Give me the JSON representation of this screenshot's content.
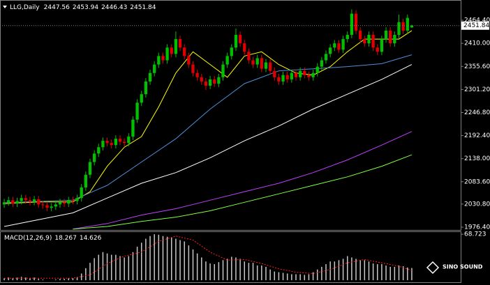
{
  "chart_data": [
    {
      "type": "candlestick",
      "title": "LLG,Daily",
      "open": [
        2030,
        2035,
        2040,
        2032,
        2038,
        2045,
        2040,
        2036,
        2042,
        2030,
        2028,
        2022,
        2025,
        2030,
        2035,
        2032,
        2040,
        2038,
        2045,
        2070,
        2100,
        2130,
        2150,
        2165,
        2180,
        2175,
        2170,
        2185,
        2178,
        2175,
        2190,
        2230,
        2270,
        2290,
        2320,
        2340,
        2360,
        2380,
        2370,
        2400,
        2385,
        2420,
        2400,
        2380,
        2360,
        2340,
        2330,
        2320,
        2310,
        2325,
        2315,
        2330,
        2360,
        2380,
        2400,
        2430,
        2410,
        2390,
        2370,
        2360,
        2375,
        2350,
        2365,
        2345,
        2330,
        2320,
        2335,
        2325,
        2340,
        2330,
        2345,
        2335,
        2330,
        2340,
        2355,
        2370,
        2385,
        2400,
        2410,
        2395,
        2420,
        2430,
        2480,
        2440,
        2420,
        2410,
        2430,
        2400,
        2390,
        2420,
        2440,
        2410,
        2430,
        2460,
        2440,
        2447.56
      ],
      "high": [
        2043,
        2048,
        2048,
        2046,
        2053,
        2053,
        2048,
        2050,
        2050,
        2038,
        2036,
        2033,
        2038,
        2043,
        2043,
        2048,
        2048,
        2053,
        2078,
        2108,
        2138,
        2158,
        2173,
        2188,
        2188,
        2183,
        2193,
        2193,
        2186,
        2198,
        2238,
        2278,
        2298,
        2328,
        2348,
        2368,
        2388,
        2388,
        2408,
        2408,
        2438,
        2428,
        2408,
        2388,
        2368,
        2348,
        2338,
        2328,
        2333,
        2333,
        2338,
        2368,
        2388,
        2408,
        2445,
        2438,
        2418,
        2398,
        2378,
        2383,
        2383,
        2373,
        2373,
        2353,
        2338,
        2343,
        2343,
        2348,
        2348,
        2353,
        2353,
        2343,
        2348,
        2363,
        2378,
        2393,
        2408,
        2418,
        2418,
        2428,
        2438,
        2490,
        2488,
        2448,
        2428,
        2438,
        2438,
        2408,
        2428,
        2448,
        2448,
        2438,
        2478,
        2468,
        2478,
        2453.94
      ],
      "low": [
        2022,
        2027,
        2024,
        2024,
        2030,
        2032,
        2028,
        2028,
        2022,
        2020,
        2014,
        2014,
        2017,
        2022,
        2024,
        2024,
        2030,
        2030,
        2037,
        2062,
        2092,
        2122,
        2142,
        2157,
        2167,
        2162,
        2162,
        2170,
        2167,
        2167,
        2182,
        2222,
        2262,
        2282,
        2312,
        2332,
        2352,
        2362,
        2362,
        2377,
        2377,
        2392,
        2372,
        2352,
        2332,
        2322,
        2312,
        2300,
        2302,
        2307,
        2307,
        2322,
        2352,
        2372,
        2392,
        2402,
        2382,
        2362,
        2352,
        2352,
        2342,
        2342,
        2337,
        2322,
        2312,
        2312,
        2317,
        2317,
        2322,
        2322,
        2327,
        2322,
        2322,
        2332,
        2347,
        2362,
        2377,
        2392,
        2387,
        2387,
        2412,
        2422,
        2432,
        2412,
        2402,
        2402,
        2392,
        2382,
        2382,
        2412,
        2402,
        2402,
        2422,
        2432,
        2432,
        2446.43
      ],
      "close": [
        2035,
        2040,
        2032,
        2038,
        2045,
        2040,
        2036,
        2042,
        2030,
        2028,
        2022,
        2025,
        2030,
        2035,
        2032,
        2040,
        2038,
        2045,
        2070,
        2100,
        2130,
        2150,
        2165,
        2180,
        2175,
        2170,
        2185,
        2178,
        2175,
        2190,
        2230,
        2270,
        2290,
        2320,
        2340,
        2360,
        2380,
        2370,
        2400,
        2385,
        2420,
        2400,
        2380,
        2360,
        2340,
        2330,
        2320,
        2310,
        2325,
        2315,
        2330,
        2360,
        2380,
        2400,
        2430,
        2410,
        2390,
        2370,
        2360,
        2375,
        2350,
        2365,
        2345,
        2330,
        2320,
        2335,
        2325,
        2340,
        2330,
        2345,
        2335,
        2330,
        2340,
        2355,
        2370,
        2385,
        2400,
        2410,
        2395,
        2420,
        2430,
        2480,
        2440,
        2420,
        2410,
        2430,
        2400,
        2390,
        2420,
        2440,
        2410,
        2430,
        2460,
        2440,
        2470,
        2451.84
      ],
      "up_color": "#00c000",
      "down_color": "#e00000",
      "overlays": [
        {
          "color": "#ffff00",
          "x": [
            0,
            8,
            16,
            20,
            24,
            28,
            32,
            36,
            40,
            44,
            48,
            52,
            56,
            60,
            64,
            68,
            72,
            76,
            80,
            84,
            88,
            92,
            95
          ],
          "values": [
            2032,
            2036,
            2036,
            2060,
            2120,
            2165,
            2190,
            2260,
            2340,
            2390,
            2360,
            2330,
            2380,
            2390,
            2360,
            2340,
            2335,
            2355,
            2390,
            2420,
            2420,
            2420,
            2440
          ]
        },
        {
          "color": "#4f8fd8",
          "x": [
            0,
            16,
            24,
            32,
            40,
            48,
            56,
            64,
            72,
            80,
            88,
            95
          ],
          "values": [
            2034,
            2040,
            2075,
            2130,
            2185,
            2255,
            2315,
            2345,
            2350,
            2355,
            2362,
            2383
          ]
        },
        {
          "color": "#ffffff",
          "x": [
            0,
            16,
            24,
            32,
            40,
            48,
            56,
            64,
            72,
            80,
            88,
            95
          ],
          "values": [
            1978,
            2010,
            2045,
            2080,
            2105,
            2140,
            2180,
            2215,
            2255,
            2290,
            2325,
            2360
          ]
        },
        {
          "color": "#c040ff",
          "x": [
            16,
            24,
            32,
            40,
            48,
            56,
            64,
            72,
            80,
            88,
            95
          ],
          "values": [
            1972,
            1985,
            2005,
            2020,
            2040,
            2060,
            2080,
            2105,
            2135,
            2170,
            2202
          ]
        },
        {
          "color": "#80ff40",
          "x": [
            16,
            24,
            32,
            40,
            48,
            56,
            64,
            72,
            80,
            88,
            95
          ],
          "values": [
            1972,
            1978,
            1990,
            2000,
            2015,
            2035,
            2055,
            2075,
            2095,
            2120,
            2147
          ]
        }
      ],
      "ylim": [
        1969.8,
        2512.2
      ],
      "yticks": [
        {
          "value": 1976.4,
          "label": "1976.40"
        },
        {
          "value": 2030.8,
          "label": "2030.80"
        },
        {
          "value": 2083.6,
          "label": "2083.60"
        },
        {
          "value": 2138,
          "label": "2138.00"
        },
        {
          "value": 2192.4,
          "label": "2192.40"
        },
        {
          "value": 2246.8,
          "label": "2246.80"
        },
        {
          "value": 2301.2,
          "label": "2301.20"
        },
        {
          "value": 2355.6,
          "label": "2355.60"
        },
        {
          "value": 2410,
          "label": "2410.00"
        },
        {
          "value": 2464.4,
          "label": "2464.40"
        }
      ]
    },
    {
      "type": "macd",
      "title": "MACD(12,26,9)",
      "values": [
        3,
        4,
        3,
        4,
        5,
        4,
        3,
        4,
        2,
        1,
        0,
        0,
        1,
        2,
        2,
        3,
        3,
        4,
        10,
        18,
        26,
        33,
        38,
        42,
        40,
        38,
        38,
        36,
        34,
        36,
        42,
        50,
        56,
        62,
        66,
        68.7,
        68,
        66,
        65,
        64,
        62,
        60,
        58,
        52,
        46,
        40,
        34,
        28,
        25,
        24,
        27,
        30,
        32,
        35,
        34,
        32,
        28,
        26,
        26,
        22,
        22,
        20,
        16,
        13,
        12,
        11,
        10,
        9,
        9,
        9,
        8,
        9,
        12,
        16,
        20,
        24,
        28,
        28,
        30,
        32,
        36,
        34,
        32,
        30,
        30,
        28,
        25,
        24,
        24,
        22,
        20,
        20,
        22,
        21,
        19,
        18.267
      ],
      "color": "#c8c8c8",
      "signal": {
        "color": "#ff2020",
        "x": [
          0,
          16,
          20,
          24,
          28,
          32,
          36,
          40,
          44,
          48,
          52,
          56,
          60,
          64,
          68,
          72,
          76,
          80,
          84,
          88,
          92,
          95
        ],
        "values": [
          3,
          3,
          8,
          25,
          36,
          42,
          58,
          66,
          60,
          42,
          30,
          31,
          25,
          17,
          12,
          10,
          16,
          26,
          31,
          26,
          21,
          14.626
        ]
      },
      "ylim": [
        -3,
        72
      ],
      "yticks": [
        {
          "value": 68.723,
          "label": "68.723"
        }
      ]
    }
  ],
  "watermark": "SINO SOUND"
}
